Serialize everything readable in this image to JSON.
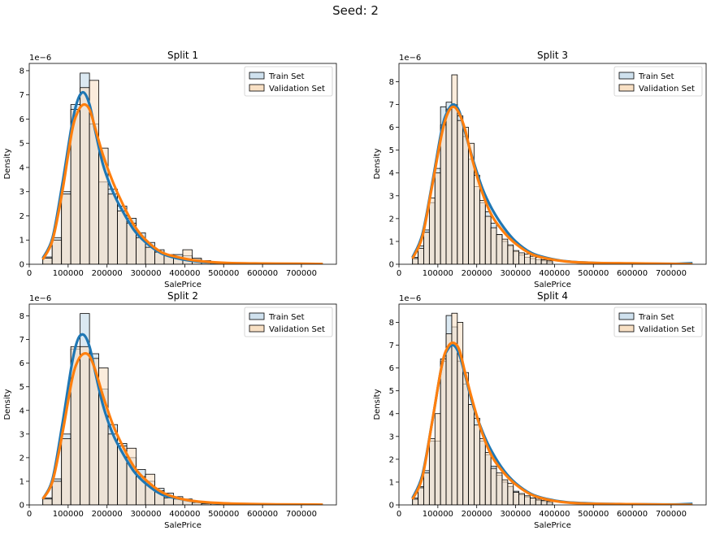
{
  "suptitle": "Seed: 2",
  "colors": {
    "train_line": "#1f77b4",
    "validation_line": "#ff7f0e",
    "train_fill": "#cfe1ee",
    "validation_fill": "#f8e0c4",
    "overlap_fill": "#e6e0cc",
    "bar_edge": "#000000"
  },
  "chart_data": [
    {
      "type": "bar",
      "title": "Split 1",
      "xlabel": "SalePrice",
      "ylabel": "Density",
      "y_scale_label": "1e−6",
      "xlim": [
        0,
        790000
      ],
      "ylim": [
        0,
        8.3
      ],
      "xticks": [
        0,
        100000,
        200000,
        300000,
        400000,
        500000,
        600000,
        700000
      ],
      "yticks": [
        0,
        1,
        2,
        3,
        4,
        5,
        6,
        7,
        8
      ],
      "legend": [
        "Train Set",
        "Validation Set"
      ],
      "legend_position": "top-right",
      "bins_edges": [
        34900,
        58900,
        82900,
        106900,
        130900,
        154900,
        178900,
        202900,
        226900,
        250900,
        274900,
        298900,
        322900,
        346900,
        370900,
        394900,
        418900,
        442900,
        466900,
        490900
      ],
      "train_density": [
        0.3,
        1.1,
        3.0,
        6.6,
        7.9,
        5.8,
        3.4,
        3.1,
        2.4,
        1.9,
        1.3,
        0.9,
        0.6,
        0.4,
        0.4,
        0.35,
        0.2,
        0.15,
        0.1
      ],
      "validation_density": [
        0.25,
        1.0,
        2.9,
        6.4,
        7.3,
        7.6,
        4.8,
        2.9,
        2.2,
        1.7,
        1.1,
        0.7,
        0.5,
        0.35,
        0.3,
        0.6,
        0.25,
        0.1,
        0.05
      ],
      "kde_x": [
        34900,
        60000,
        85000,
        110000,
        125000,
        140000,
        155000,
        170000,
        190000,
        215000,
        240000,
        270000,
        300000,
        340000,
        380000,
        430000,
        500000,
        600000,
        700000,
        755000
      ],
      "train_kde": [
        0.25,
        1.1,
        3.3,
        5.8,
        6.8,
        7.1,
        6.6,
        5.5,
        4.1,
        3.0,
        2.2,
        1.4,
        0.9,
        0.45,
        0.25,
        0.12,
        0.05,
        0.02,
        0.01,
        0.0
      ],
      "validation_kde": [
        0.2,
        1.0,
        3.0,
        5.5,
        6.3,
        6.6,
        6.4,
        5.6,
        4.5,
        3.4,
        2.5,
        1.6,
        1.0,
        0.5,
        0.3,
        0.15,
        0.06,
        0.03,
        0.02,
        0.01
      ]
    },
    {
      "type": "bar",
      "title": "Split 3",
      "xlabel": "SalePrice",
      "ylabel": "Density",
      "y_scale_label": "1e−6",
      "xlim": [
        0,
        790000
      ],
      "ylim": [
        0,
        8.8
      ],
      "xticks": [
        0,
        100000,
        200000,
        300000,
        400000,
        500000,
        600000,
        700000
      ],
      "yticks": [
        0,
        1,
        2,
        3,
        4,
        5,
        6,
        7,
        8
      ],
      "legend": [
        "Train Set",
        "Validation Set"
      ],
      "legend_position": "top-right",
      "bins_edges": [
        34900,
        49300,
        63700,
        78100,
        92500,
        106900,
        121300,
        135700,
        150100,
        164500,
        178900,
        193300,
        207700,
        222100,
        236500,
        250900,
        265300,
        279700,
        294100,
        308500,
        322900,
        337300,
        351700,
        366100,
        380500,
        394900
      ],
      "train_density": [
        0.3,
        0.8,
        1.5,
        2.7,
        4.2,
        6.9,
        7.1,
        7.0,
        6.5,
        5.6,
        4.6,
        3.4,
        2.7,
        2.3,
        1.8,
        1.3,
        1.0,
        0.8,
        0.55,
        0.4,
        0.3,
        0.25,
        0.2,
        0.15,
        0.1
      ],
      "validation_density": [
        0.25,
        0.7,
        1.4,
        2.9,
        4.0,
        6.1,
        6.8,
        8.3,
        6.3,
        6.0,
        5.3,
        3.9,
        2.8,
        2.1,
        1.6,
        1.3,
        1.1,
        0.85,
        0.6,
        0.5,
        0.45,
        0.35,
        0.3,
        0.2,
        0.15
      ],
      "kde_x": [
        34900,
        60000,
        85000,
        110000,
        125000,
        140000,
        155000,
        170000,
        190000,
        215000,
        240000,
        270000,
        300000,
        340000,
        380000,
        430000,
        500000,
        600000,
        700000,
        755000
      ],
      "train_kde": [
        0.3,
        1.3,
        3.5,
        5.9,
        6.7,
        7.0,
        6.7,
        5.8,
        4.6,
        3.3,
        2.4,
        1.6,
        1.0,
        0.5,
        0.28,
        0.13,
        0.06,
        0.03,
        0.02,
        0.05
      ],
      "validation_kde": [
        0.25,
        1.2,
        3.4,
        5.7,
        6.6,
        6.9,
        6.6,
        5.9,
        4.5,
        3.1,
        2.1,
        1.4,
        0.9,
        0.45,
        0.25,
        0.12,
        0.06,
        0.04,
        0.02,
        0.0
      ]
    },
    {
      "type": "bar",
      "title": "Split 2",
      "xlabel": "SalePrice",
      "ylabel": "Density",
      "y_scale_label": "1e−6",
      "xlim": [
        0,
        790000
      ],
      "ylim": [
        0,
        8.5
      ],
      "xticks": [
        0,
        100000,
        200000,
        300000,
        400000,
        500000,
        600000,
        700000
      ],
      "yticks": [
        0,
        1,
        2,
        3,
        4,
        5,
        6,
        7,
        8
      ],
      "legend": [
        "Train Set",
        "Validation Set"
      ],
      "legend_position": "top-right",
      "bins_edges": [
        34900,
        58900,
        82900,
        106900,
        130900,
        154900,
        178900,
        202900,
        226900,
        250900,
        274900,
        298900,
        322900,
        346900,
        370900,
        394900,
        418900,
        442900,
        466900,
        490900
      ],
      "train_density": [
        0.3,
        1.1,
        3.0,
        6.6,
        8.1,
        6.4,
        4.9,
        3.4,
        2.6,
        2.0,
        1.5,
        1.0,
        0.7,
        0.5,
        0.35,
        0.25,
        0.15,
        0.1,
        0.05
      ],
      "validation_density": [
        0.25,
        1.0,
        2.8,
        6.7,
        6.7,
        6.2,
        5.8,
        3.0,
        2.5,
        2.4,
        1.2,
        1.3,
        0.6,
        0.3,
        0.25,
        0.2,
        0.1,
        0.05,
        0.05
      ],
      "kde_x": [
        34900,
        60000,
        85000,
        110000,
        125000,
        140000,
        155000,
        170000,
        190000,
        215000,
        240000,
        270000,
        300000,
        340000,
        380000,
        430000,
        500000,
        600000,
        700000,
        755000
      ],
      "train_kde": [
        0.25,
        1.1,
        3.4,
        6.0,
        7.0,
        7.2,
        6.7,
        5.6,
        4.2,
        3.0,
        2.2,
        1.4,
        0.9,
        0.45,
        0.28,
        0.14,
        0.06,
        0.02,
        0.01,
        0.0
      ],
      "validation_kde": [
        0.25,
        1.0,
        3.0,
        5.3,
        6.1,
        6.4,
        6.3,
        5.7,
        4.6,
        3.4,
        2.5,
        1.6,
        1.05,
        0.55,
        0.3,
        0.15,
        0.07,
        0.03,
        0.02,
        0.01
      ]
    },
    {
      "type": "bar",
      "title": "Split 4",
      "xlabel": "SalePrice",
      "ylabel": "Density",
      "y_scale_label": "1e−6",
      "xlim": [
        0,
        790000
      ],
      "ylim": [
        0,
        8.8
      ],
      "xticks": [
        0,
        100000,
        200000,
        300000,
        400000,
        500000,
        600000,
        700000
      ],
      "yticks": [
        0,
        1,
        2,
        3,
        4,
        5,
        6,
        7,
        8
      ],
      "legend": [
        "Train Set",
        "Validation Set"
      ],
      "legend_position": "top-right",
      "bins_edges": [
        34900,
        49300,
        63700,
        78100,
        92500,
        106900,
        121300,
        135700,
        150100,
        164500,
        178900,
        193300,
        207700,
        222100,
        236500,
        250900,
        265300,
        279700,
        294100,
        308500,
        322900,
        337300,
        351700,
        366100,
        380500,
        394900
      ],
      "train_density": [
        0.3,
        0.8,
        1.5,
        2.8,
        2.8,
        6.3,
        8.3,
        7.8,
        6.3,
        5.3,
        4.4,
        3.8,
        2.8,
        2.2,
        1.7,
        1.3,
        1.0,
        0.8,
        0.6,
        0.45,
        0.35,
        0.3,
        0.2,
        0.15,
        0.1
      ],
      "validation_density": [
        0.25,
        0.75,
        1.4,
        2.9,
        4.0,
        6.4,
        7.5,
        8.4,
        8.0,
        5.8,
        4.4,
        3.5,
        2.9,
        2.3,
        1.6,
        1.4,
        1.1,
        0.95,
        0.55,
        0.5,
        0.4,
        0.3,
        0.25,
        0.2,
        0.15
      ],
      "kde_x": [
        34900,
        60000,
        85000,
        110000,
        125000,
        140000,
        155000,
        170000,
        190000,
        215000,
        240000,
        270000,
        300000,
        340000,
        380000,
        430000,
        500000,
        600000,
        700000,
        755000
      ],
      "train_kde": [
        0.3,
        1.3,
        3.6,
        6.1,
        6.8,
        7.0,
        6.6,
        5.7,
        4.4,
        3.2,
        2.3,
        1.5,
        0.95,
        0.48,
        0.26,
        0.12,
        0.06,
        0.03,
        0.02,
        0.05
      ],
      "validation_kde": [
        0.25,
        1.2,
        3.6,
        6.1,
        6.9,
        7.1,
        6.8,
        5.8,
        4.5,
        3.1,
        2.1,
        1.4,
        0.9,
        0.45,
        0.24,
        0.11,
        0.05,
        0.03,
        0.01,
        0.0
      ]
    }
  ]
}
